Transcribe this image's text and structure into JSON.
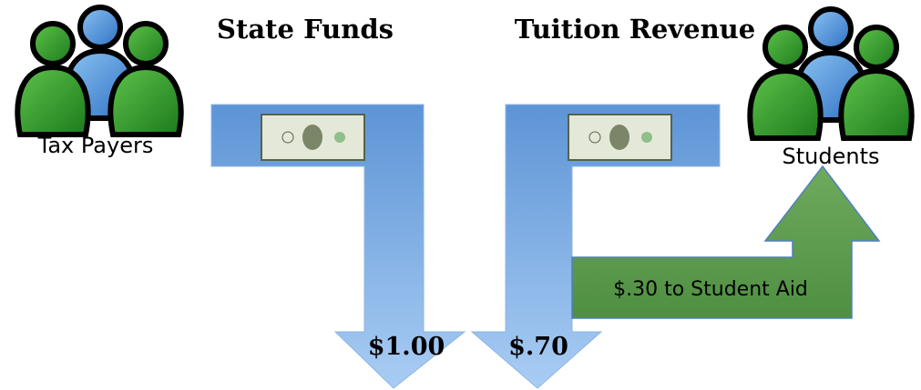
{
  "groups": [
    {
      "label": "Tax Payers"
    },
    {
      "label": "Students"
    }
  ],
  "flows": [
    {
      "title": "State Funds",
      "amount": "$1.00"
    },
    {
      "title": "Tuition Revenue",
      "amount": "$.70"
    }
  ],
  "aid": {
    "label": "$.30 to Student Aid"
  }
}
